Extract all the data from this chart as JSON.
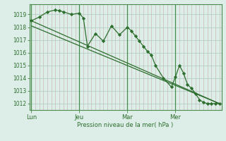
{
  "bg_color": "#ddeee8",
  "line_color": "#2d6e2d",
  "marker_color": "#2d6e2d",
  "ylabel": "Pression niveau de la mer( hPa )",
  "ylim": [
    1011.5,
    1019.8
  ],
  "yticks": [
    1012,
    1013,
    1014,
    1015,
    1016,
    1017,
    1018,
    1019
  ],
  "xtick_labels": [
    "Lun",
    "Jeu",
    "Mar",
    "Mer"
  ],
  "xtick_positions": [
    0,
    12,
    24,
    36
  ],
  "xlim": [
    -0.5,
    47.5
  ],
  "line1_x": [
    0,
    47
  ],
  "line1_y": [
    1018.5,
    1012.0
  ],
  "line2_x": [
    0,
    47
  ],
  "line2_y": [
    1018.1,
    1012.0
  ],
  "zigzag_x": [
    0,
    2,
    4,
    6,
    7,
    8,
    10,
    12,
    13,
    14,
    16,
    18,
    20,
    22,
    24,
    25,
    26,
    27,
    28,
    29,
    30,
    31,
    33,
    35,
    36,
    37,
    38,
    39,
    40,
    41,
    42,
    43,
    44,
    45,
    46,
    47
  ],
  "zigzag_y": [
    1018.5,
    1018.8,
    1019.2,
    1019.35,
    1019.3,
    1019.2,
    1019.0,
    1019.1,
    1018.7,
    1016.5,
    1017.5,
    1016.9,
    1018.1,
    1017.4,
    1018.0,
    1017.7,
    1017.3,
    1016.9,
    1016.5,
    1016.1,
    1015.8,
    1015.0,
    1014.0,
    1013.3,
    1014.1,
    1015.0,
    1014.4,
    1013.5,
    1013.2,
    1012.8,
    1012.3,
    1012.1,
    1012.0,
    1012.0,
    1012.0,
    1012.0
  ]
}
